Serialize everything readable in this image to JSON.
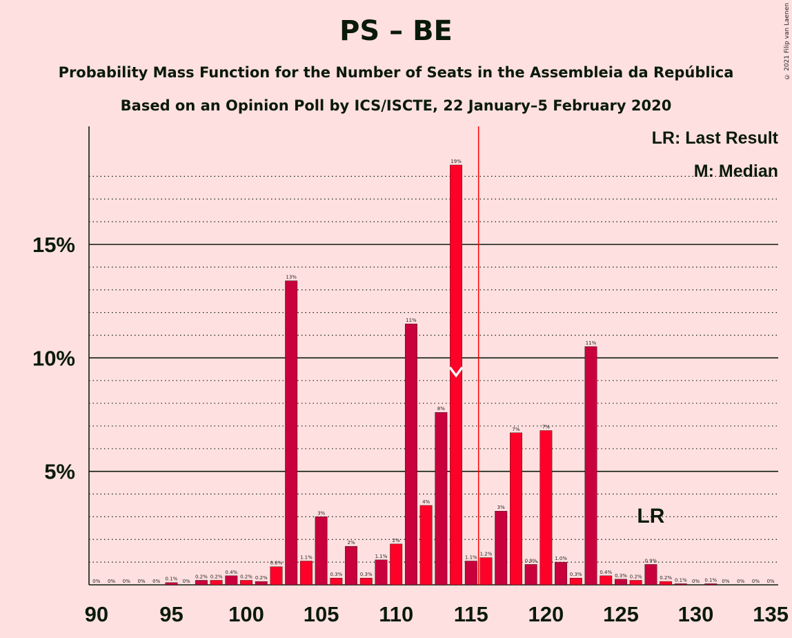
{
  "chart_data": {
    "type": "bar",
    "title": "PS – BE",
    "subtitle": "Probability Mass Function for the Number of Seats in the Assembleia da República",
    "subtitle2": "Based on an Opinion Poll by ICS/ISCTE, 22 January–5 February 2020",
    "copyright": "© 2021 Filip van Laenen",
    "legend": {
      "lr": "LR: Last Result",
      "median": "M: Median",
      "placement": "top-right"
    },
    "xlim": [
      90,
      135
    ],
    "ylim": [
      0,
      20
    ],
    "xticks": [
      90,
      95,
      100,
      105,
      110,
      115,
      120,
      125,
      130,
      135
    ],
    "yticks": [
      {
        "value": 5,
        "label": "5%"
      },
      {
        "value": 10,
        "label": "10%"
      },
      {
        "value": 15,
        "label": "15%"
      }
    ],
    "grid": true,
    "majority_line": 115.5,
    "median": 114,
    "last_result": 127,
    "last_result_label": "LR",
    "colors": {
      "dark": "#C8003C",
      "light": "#FF0028",
      "background": "#FFE0E0",
      "majority": "#FF0000"
    },
    "bars": [
      {
        "x": 90,
        "value": 0.0,
        "label": "0%"
      },
      {
        "x": 91,
        "value": 0.0,
        "label": "0%"
      },
      {
        "x": 92,
        "value": 0.0,
        "label": "0%"
      },
      {
        "x": 93,
        "value": 0.0,
        "label": "0%"
      },
      {
        "x": 94,
        "value": 0.0,
        "label": "0%"
      },
      {
        "x": 95,
        "value": 0.1,
        "label": "0.1%"
      },
      {
        "x": 96,
        "value": 0.0,
        "label": "0%"
      },
      {
        "x": 97,
        "value": 0.2,
        "label": "0.2%"
      },
      {
        "x": 98,
        "value": 0.2,
        "label": "0.2%"
      },
      {
        "x": 99,
        "value": 0.4,
        "label": "0.4%"
      },
      {
        "x": 100,
        "value": 0.2,
        "label": "0.2%"
      },
      {
        "x": 101,
        "value": 0.15,
        "label": "0.2%"
      },
      {
        "x": 102,
        "value": 0.8,
        "label": "0.8%"
      },
      {
        "x": 103,
        "value": 13.4,
        "label": "13%"
      },
      {
        "x": 104,
        "value": 1.05,
        "label": "1.1%"
      },
      {
        "x": 105,
        "value": 3.0,
        "label": "3%"
      },
      {
        "x": 106,
        "value": 0.3,
        "label": "0.3%"
      },
      {
        "x": 107,
        "value": 1.7,
        "label": "2%"
      },
      {
        "x": 108,
        "value": 0.3,
        "label": "0.3%"
      },
      {
        "x": 109,
        "value": 1.1,
        "label": "1.1%"
      },
      {
        "x": 110,
        "value": 1.8,
        "label": "2%"
      },
      {
        "x": 111,
        "value": 11.5,
        "label": "11%"
      },
      {
        "x": 112,
        "value": 3.5,
        "label": "4%"
      },
      {
        "x": 113,
        "value": 7.6,
        "label": "8%"
      },
      {
        "x": 114,
        "value": 18.5,
        "label": "19%"
      },
      {
        "x": 115,
        "value": 1.05,
        "label": "1.1%"
      },
      {
        "x": 116,
        "value": 1.2,
        "label": "1.2%"
      },
      {
        "x": 117,
        "value": 3.25,
        "label": "3%"
      },
      {
        "x": 118,
        "value": 6.7,
        "label": "7%"
      },
      {
        "x": 119,
        "value": 0.9,
        "label": "0.9%"
      },
      {
        "x": 120,
        "value": 6.8,
        "label": "7%"
      },
      {
        "x": 121,
        "value": 1.0,
        "label": "1.0%"
      },
      {
        "x": 122,
        "value": 0.3,
        "label": "0.3%"
      },
      {
        "x": 123,
        "value": 10.5,
        "label": "11%"
      },
      {
        "x": 124,
        "value": 0.4,
        "label": "0.4%"
      },
      {
        "x": 125,
        "value": 0.25,
        "label": "0.3%"
      },
      {
        "x": 126,
        "value": 0.2,
        "label": "0.2%"
      },
      {
        "x": 127,
        "value": 0.9,
        "label": "0.9%"
      },
      {
        "x": 128,
        "value": 0.15,
        "label": "0.2%"
      },
      {
        "x": 129,
        "value": 0.05,
        "label": "0.1%"
      },
      {
        "x": 130,
        "value": 0.0,
        "label": "0%"
      },
      {
        "x": 131,
        "value": 0.05,
        "label": "0.1%"
      },
      {
        "x": 132,
        "value": 0.0,
        "label": "0%"
      },
      {
        "x": 133,
        "value": 0.0,
        "label": "0%"
      },
      {
        "x": 134,
        "value": 0.0,
        "label": "0%"
      },
      {
        "x": 135,
        "value": 0.0,
        "label": "0%"
      }
    ]
  }
}
